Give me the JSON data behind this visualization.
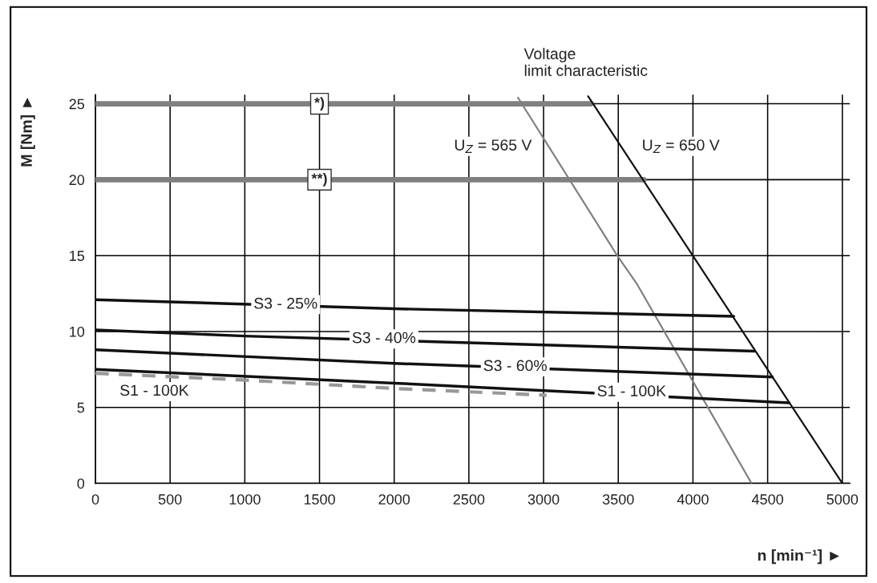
{
  "chart_data": {
    "type": "line",
    "xlabel": "n [min⁻¹] ►",
    "ylabel": "M [Nm] ►",
    "xlim": [
      0,
      5050
    ],
    "ylim": [
      0,
      25.6
    ],
    "xticks": [
      0,
      500,
      1000,
      1500,
      2000,
      2500,
      3000,
      3500,
      4000,
      4500,
      5000
    ],
    "yticks": [
      0,
      5,
      10,
      15,
      20,
      25
    ],
    "grid": true,
    "series": [
      {
        "color": "#808080",
        "x": [
          0,
          3317
        ],
        "values": [
          25,
          25
        ]
      },
      {
        "color": "#808080",
        "x": [
          0,
          3671
        ],
        "values": [
          20,
          20
        ]
      },
      {
        "color": "#808080",
        "x": [
          2829,
          3493,
          3627,
          4392
        ],
        "values": [
          25.4,
          15,
          13.1,
          0
        ]
      },
      {
        "color": "#111111",
        "x": [
          3298,
          5000
        ],
        "values": [
          25.5,
          0
        ]
      },
      {
        "color": "#111111",
        "x": [
          0,
          2000,
          4273
        ],
        "values": [
          12.1,
          11.5,
          11.0
        ]
      },
      {
        "color": "#111111",
        "x": [
          0,
          1000,
          4413
        ],
        "values": [
          10.1,
          9.7,
          8.7
        ]
      },
      {
        "color": "#111111",
        "x": [
          0,
          2000,
          4532
        ],
        "values": [
          8.8,
          7.9,
          7.0
        ]
      },
      {
        "color": "#111111",
        "x": [
          0,
          2000,
          4643
        ],
        "values": [
          7.5,
          6.6,
          5.3
        ]
      },
      {
        "color": "#999999",
        "line_style": "dashed",
        "x": [
          0,
          1000,
          2000,
          3020
        ],
        "values": [
          7.25,
          6.8,
          6.25,
          5.8
        ]
      }
    ],
    "annotations": [
      "Voltage\nlimit characteristic",
      "U$_{Z}$ = 565 V",
      "U$_{Z}$ = 650 V",
      "S1 - 100K",
      {
        "text": "*)",
        "x": 1500,
        "y": 25
      },
      {
        "text": "**)",
        "x": 1500,
        "y": 20
      },
      {
        "text": "S3 - 25%",
        "x": 1273,
        "y": 11.77
      },
      {
        "text": "S3 - 40%",
        "x": 1931,
        "y": 9.51
      },
      {
        "text": "S3 - 60%",
        "x": 2810,
        "y": 7.67
      },
      {
        "text": "S1 - 100K",
        "x": 3589,
        "y": 6.0
      }
    ]
  }
}
